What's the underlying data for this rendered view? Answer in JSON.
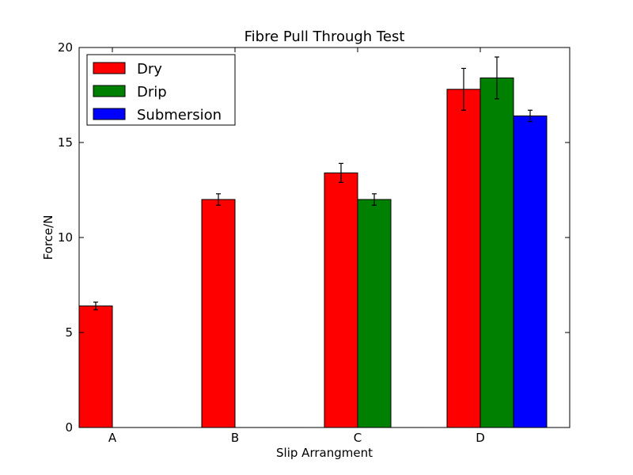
{
  "chart_data": {
    "type": "bar",
    "title": "Fibre Pull Through Test",
    "xlabel": "Slip Arrangment",
    "ylabel": "Force/N",
    "ylim": [
      0,
      20
    ],
    "yticks": [
      0,
      5,
      10,
      15,
      20
    ],
    "categories": [
      "A",
      "B",
      "C",
      "D"
    ],
    "series": [
      {
        "name": "Dry",
        "color": "#ff0000",
        "values": [
          6.4,
          12.0,
          13.4,
          17.8
        ],
        "errors": [
          0.2,
          0.3,
          0.5,
          1.1
        ]
      },
      {
        "name": "Drip",
        "color": "#008000",
        "values": [
          0,
          0,
          12.0,
          18.4
        ],
        "errors": [
          0,
          0,
          0.3,
          1.1
        ]
      },
      {
        "name": "Submersion",
        "color": "#0000ff",
        "values": [
          0,
          0,
          0,
          16.4
        ],
        "errors": [
          0,
          0,
          0,
          0.3
        ]
      }
    ],
    "legend_position": "top-left",
    "grid": false
  }
}
